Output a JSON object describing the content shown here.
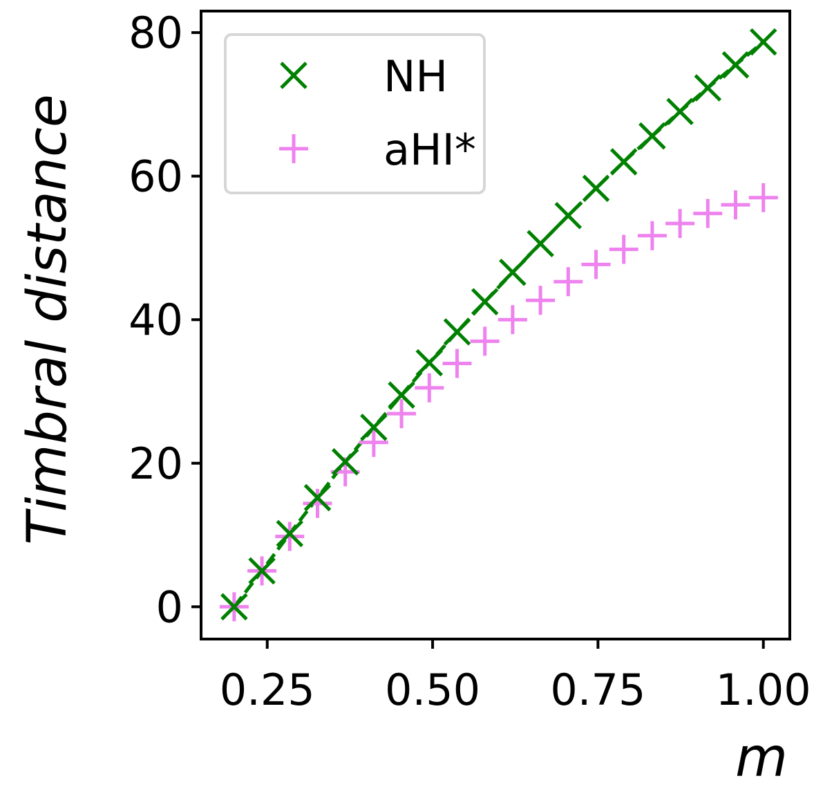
{
  "chart_data": {
    "type": "scatter",
    "title": "",
    "xlabel": "m",
    "ylabel": "Timbral distance",
    "xlim": [
      0.15,
      1.04
    ],
    "ylim": [
      -4.5,
      83
    ],
    "xticks": [
      0.25,
      0.5,
      0.75,
      1.0
    ],
    "xtick_labels": [
      "0.25",
      "0.50",
      "0.75",
      "1.00"
    ],
    "yticks": [
      0,
      20,
      40,
      60,
      80
    ],
    "ytick_labels": [
      "0",
      "20",
      "40",
      "60",
      "80"
    ],
    "grid": false,
    "legend_position": "top-left",
    "series": [
      {
        "name": "NH",
        "marker": "x",
        "color": "#008000",
        "connector": "dashed",
        "x": [
          0.2,
          0.242,
          0.284,
          0.326,
          0.368,
          0.411,
          0.453,
          0.495,
          0.537,
          0.579,
          0.621,
          0.663,
          0.705,
          0.747,
          0.789,
          0.832,
          0.874,
          0.916,
          0.958,
          1.0
        ],
        "y": [
          0.0,
          5.0,
          10.2,
          15.2,
          20.2,
          25.0,
          29.5,
          34.0,
          38.3,
          42.5,
          46.6,
          50.6,
          54.5,
          58.3,
          62.0,
          65.6,
          69.0,
          72.3,
          75.5,
          78.7
        ]
      },
      {
        "name": "aHI*",
        "marker": "+",
        "color": "#ee82ee",
        "connector": "none",
        "x": [
          0.2,
          0.242,
          0.284,
          0.326,
          0.368,
          0.411,
          0.453,
          0.495,
          0.537,
          0.579,
          0.621,
          0.663,
          0.705,
          0.747,
          0.789,
          0.832,
          0.874,
          0.916,
          0.958,
          1.0
        ],
        "y": [
          0.0,
          5.0,
          9.8,
          14.4,
          18.8,
          22.9,
          26.9,
          30.5,
          33.9,
          37.0,
          40.0,
          42.7,
          45.3,
          47.7,
          49.8,
          51.7,
          53.4,
          54.8,
          56.0,
          57.0
        ]
      }
    ]
  }
}
